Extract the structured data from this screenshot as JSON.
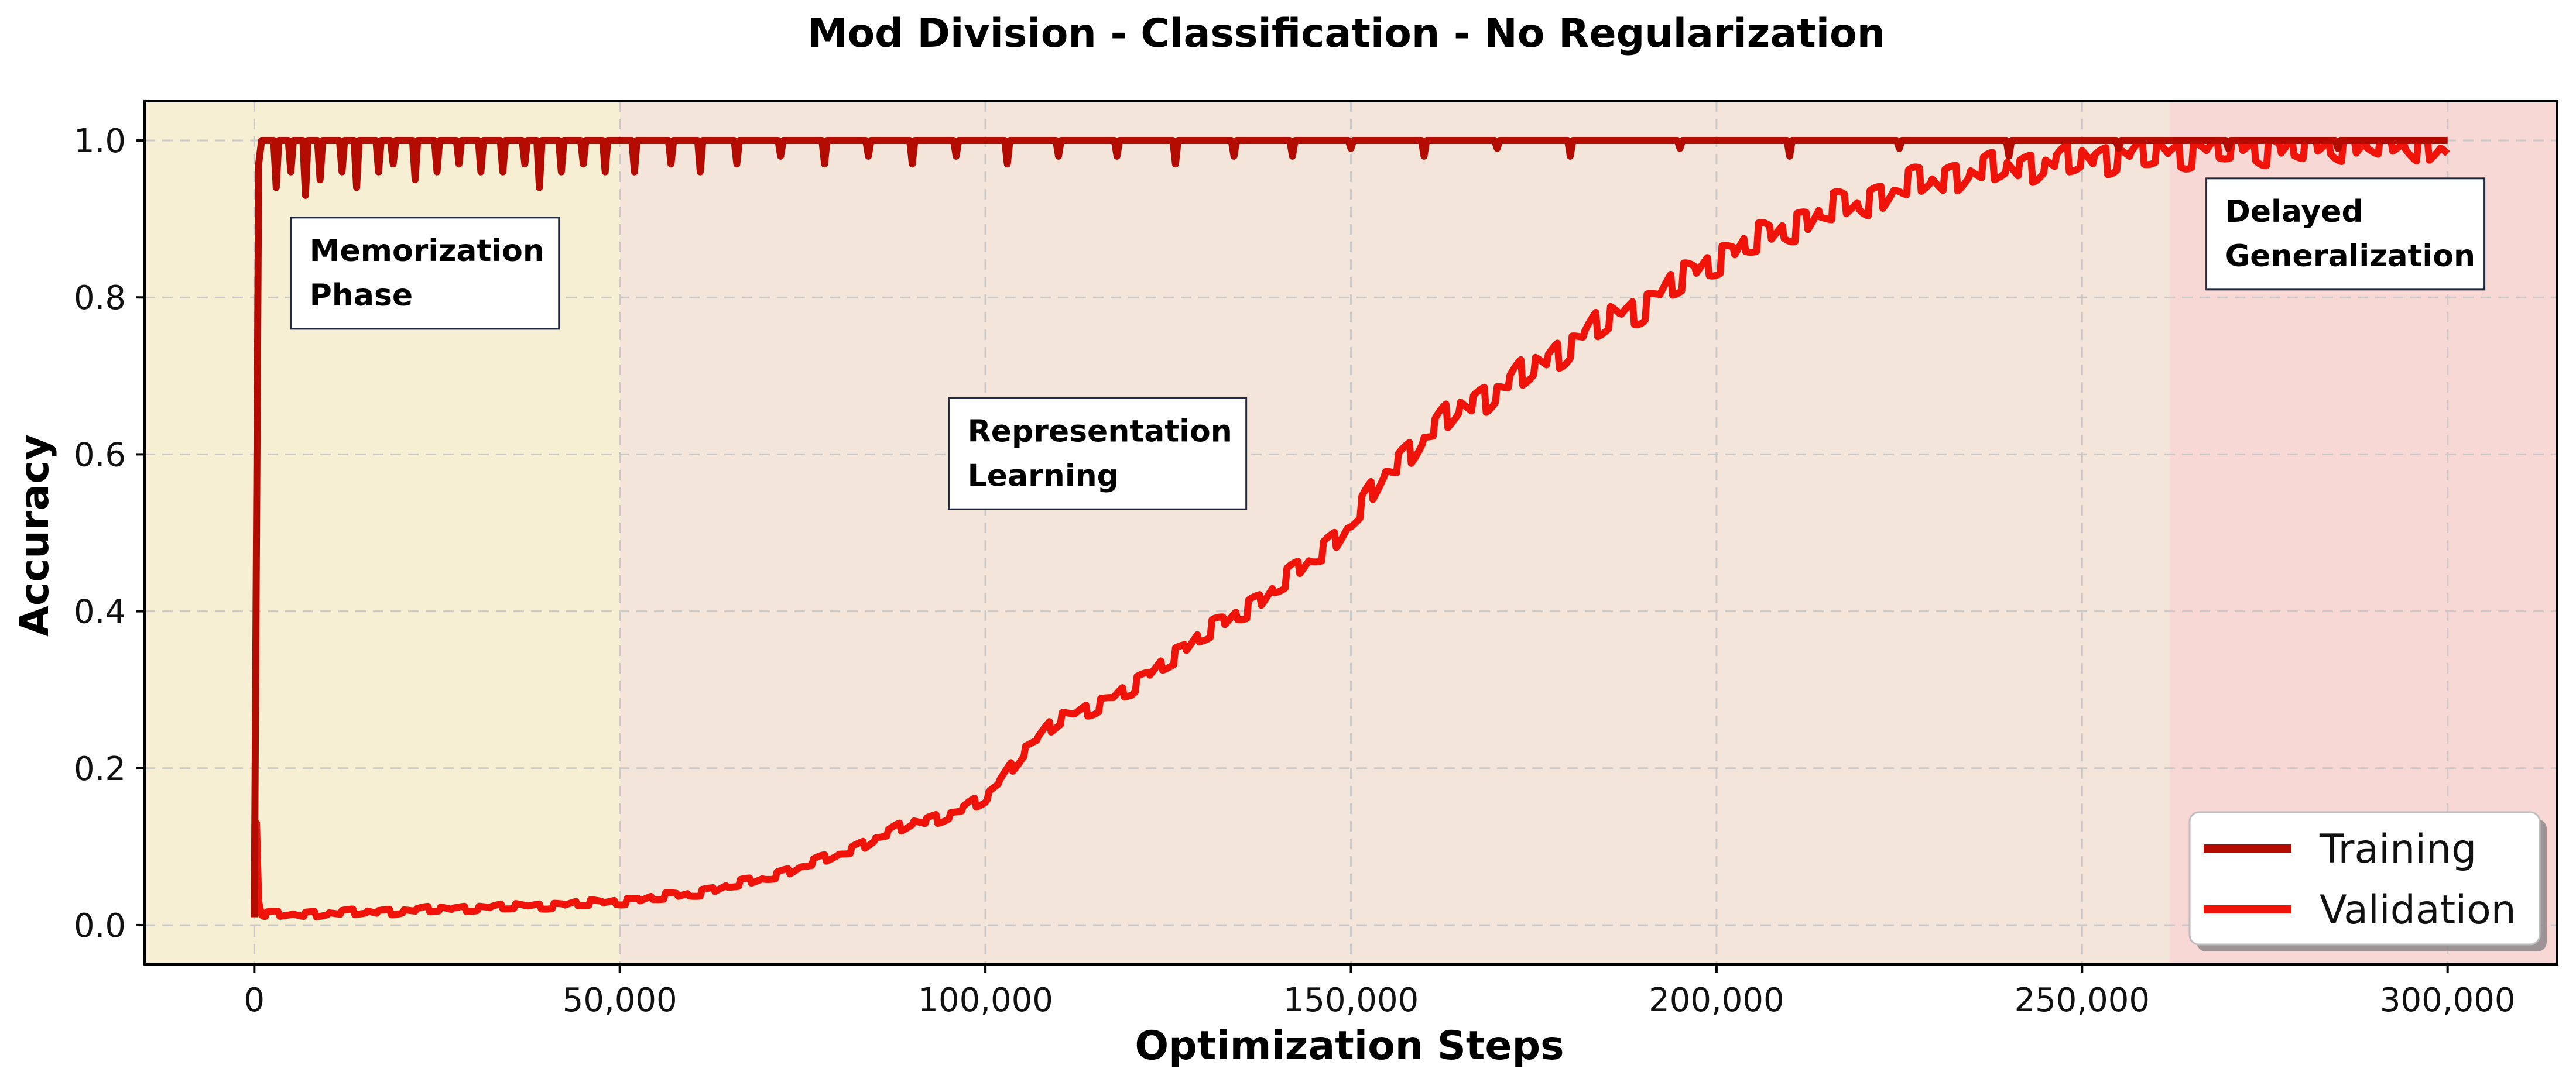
{
  "chart_data": {
    "type": "line",
    "title": "Mod Division - Classification - No Regularization",
    "xlabel": "Optimization Steps",
    "ylabel": "Accuracy",
    "xlim": [
      -15000,
      315000
    ],
    "ylim": [
      -0.05,
      1.05
    ],
    "xticks": [
      0,
      50000,
      100000,
      150000,
      200000,
      250000,
      300000
    ],
    "xtick_labels": [
      "0",
      "50,000",
      "100,000",
      "150,000",
      "200,000",
      "250,000",
      "300,000"
    ],
    "yticks": [
      0.0,
      0.2,
      0.4,
      0.6,
      0.8,
      1.0
    ],
    "ytick_labels": [
      "0.0",
      "0.2",
      "0.4",
      "0.6",
      "0.8",
      "1.0"
    ],
    "grid": true,
    "legend": "lower-right",
    "phases": [
      {
        "label": "Memorization Phase",
        "x_start": -15000,
        "x_end": 50000,
        "color": "#f7efd4"
      },
      {
        "label": "Representation Learning",
        "x_start": 50000,
        "x_end": 262000,
        "color": "#f4e5db"
      },
      {
        "label": "Delayed Generalization",
        "x_start": 262000,
        "x_end": 315000,
        "color": "#f8d8d5"
      }
    ],
    "annotations": [
      {
        "lines": [
          "Memorization",
          "Phase"
        ],
        "x": 5000,
        "y": 0.76
      },
      {
        "lines": [
          "Representation",
          "Learning"
        ],
        "x": 95000,
        "y": 0.53
      },
      {
        "lines": [
          "Delayed",
          "Generalization"
        ],
        "x": 267000,
        "y": 0.81
      }
    ],
    "series": [
      {
        "name": "Training",
        "color": "#b30b00",
        "x": [
          0,
          300,
          600,
          1000,
          2000,
          5000,
          10000,
          20000,
          30000,
          40000,
          50000,
          60000,
          80000,
          100000,
          150000,
          200000,
          250000,
          300000
        ],
        "y": [
          0.01,
          0.5,
          0.97,
          1.0,
          1.0,
          1.0,
          1.0,
          1.0,
          1.0,
          1.0,
          1.0,
          1.0,
          1.0,
          1.0,
          1.0,
          1.0,
          1.0,
          1.0
        ],
        "dips": [
          [
            3000,
            0.94
          ],
          [
            5000,
            0.96
          ],
          [
            7000,
            0.93
          ],
          [
            9000,
            0.95
          ],
          [
            12000,
            0.96
          ],
          [
            14000,
            0.94
          ],
          [
            17000,
            0.96
          ],
          [
            19000,
            0.97
          ],
          [
            22000,
            0.95
          ],
          [
            25000,
            0.96
          ],
          [
            28000,
            0.97
          ],
          [
            31000,
            0.96
          ],
          [
            34000,
            0.96
          ],
          [
            37000,
            0.97
          ],
          [
            39000,
            0.94
          ],
          [
            42000,
            0.96
          ],
          [
            45000,
            0.97
          ],
          [
            48000,
            0.96
          ],
          [
            52000,
            0.96
          ],
          [
            57000,
            0.97
          ],
          [
            61000,
            0.96
          ],
          [
            66000,
            0.97
          ],
          [
            72000,
            0.98
          ],
          [
            78000,
            0.97
          ],
          [
            84000,
            0.98
          ],
          [
            90000,
            0.97
          ],
          [
            96000,
            0.98
          ],
          [
            103000,
            0.97
          ],
          [
            110000,
            0.98
          ],
          [
            118000,
            0.98
          ],
          [
            126000,
            0.97
          ],
          [
            134000,
            0.98
          ],
          [
            142000,
            0.98
          ],
          [
            150000,
            0.99
          ],
          [
            160000,
            0.98
          ],
          [
            170000,
            0.99
          ],
          [
            180000,
            0.98
          ],
          [
            195000,
            0.99
          ],
          [
            210000,
            0.98
          ],
          [
            225000,
            0.99
          ],
          [
            240000,
            0.98
          ],
          [
            255000,
            0.99
          ],
          [
            270000,
            0.99
          ],
          [
            285000,
            0.99
          ]
        ]
      },
      {
        "name": "Validation",
        "color": "#f01309",
        "x": [
          0,
          300,
          600,
          1000,
          10000,
          20000,
          30000,
          40000,
          50000,
          60000,
          70000,
          80000,
          85000,
          90000,
          95000,
          100000,
          105000,
          110000,
          115000,
          120000,
          125000,
          130000,
          135000,
          140000,
          145000,
          150000,
          155000,
          160000,
          165000,
          170000,
          175000,
          180000,
          185000,
          190000,
          195000,
          200000,
          205000,
          210000,
          215000,
          220000,
          225000,
          230000,
          235000,
          240000,
          245000,
          250000,
          255000,
          260000,
          265000,
          270000,
          275000,
          280000,
          285000,
          290000,
          295000,
          300000
        ],
        "y": [
          0.01,
          0.13,
          0.03,
          0.013,
          0.015,
          0.018,
          0.022,
          0.025,
          0.03,
          0.04,
          0.06,
          0.09,
          0.11,
          0.13,
          0.14,
          0.16,
          0.22,
          0.26,
          0.28,
          0.3,
          0.34,
          0.37,
          0.4,
          0.43,
          0.47,
          0.51,
          0.58,
          0.62,
          0.66,
          0.68,
          0.71,
          0.74,
          0.77,
          0.79,
          0.82,
          0.85,
          0.87,
          0.89,
          0.91,
          0.92,
          0.94,
          0.95,
          0.96,
          0.965,
          0.97,
          0.975,
          0.98,
          0.983,
          0.986,
          0.99,
          0.99,
          0.99,
          0.995,
          0.995,
          0.995,
          0.99
        ]
      }
    ]
  }
}
